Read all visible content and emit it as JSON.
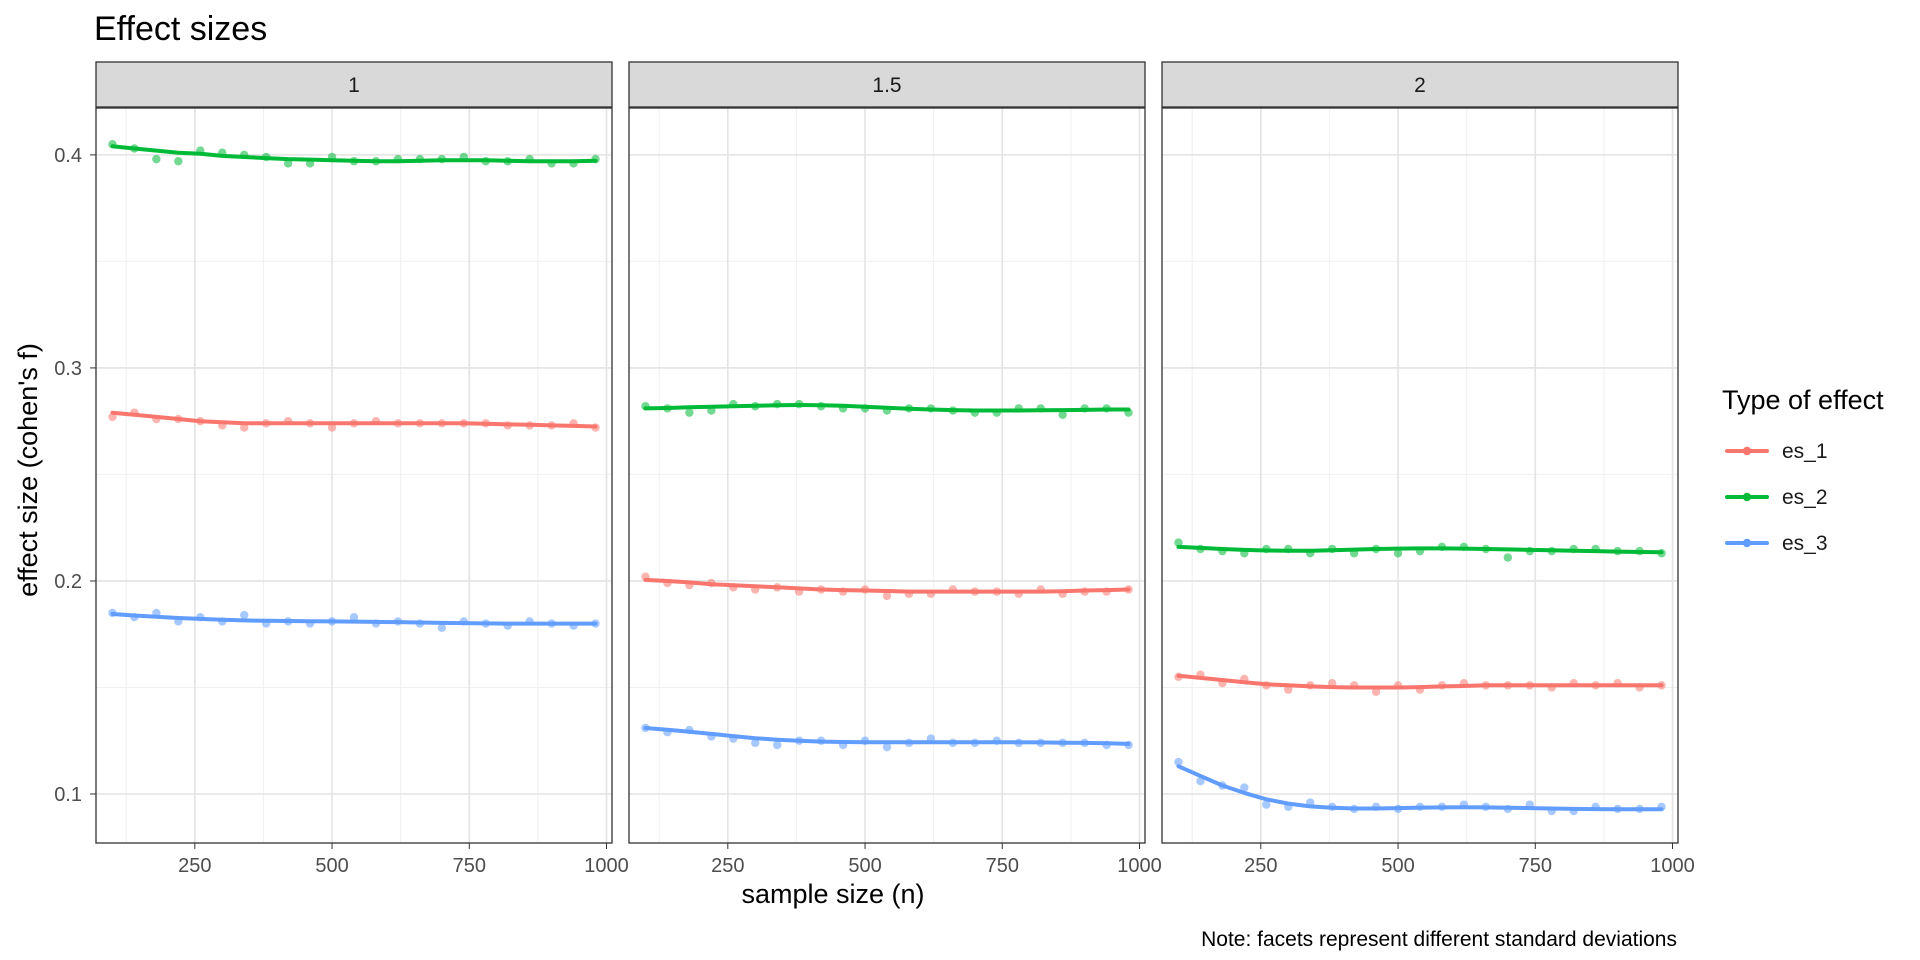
{
  "chart_data": {
    "type": "line",
    "title": "Effect sizes",
    "xlabel": "sample size (n)",
    "ylabel": "effect size (cohen's f)",
    "caption": "Note: facets represent different standard deviations",
    "legend": {
      "title": "Type of effect",
      "position": "right"
    },
    "xlim": [
      70,
      1010
    ],
    "ylim": [
      0.077,
      0.422
    ],
    "x_ticks": [
      250,
      500,
      750,
      1000
    ],
    "x_tick_labels": [
      "250",
      "500",
      "750",
      "1000"
    ],
    "y_ticks": [
      0.1,
      0.2,
      0.3,
      0.4
    ],
    "y_tick_labels": [
      "0.1",
      "0.2",
      "0.3",
      "0.4"
    ],
    "grid": true,
    "x": [
      100,
      140,
      180,
      220,
      260,
      300,
      340,
      380,
      420,
      460,
      500,
      540,
      580,
      620,
      660,
      700,
      740,
      780,
      820,
      860,
      900,
      940,
      980
    ],
    "series_colors": {
      "es_1": "#F8766D",
      "es_2": "#00BA38",
      "es_3": "#619CFF"
    },
    "facets": [
      {
        "label": "1",
        "series": [
          {
            "name": "es_1",
            "values": [
              0.277,
              0.279,
              0.276,
              0.276,
              0.275,
              0.273,
              0.272,
              0.274,
              0.275,
              0.274,
              0.272,
              0.274,
              0.275,
              0.274,
              0.274,
              0.274,
              0.274,
              0.274,
              0.273,
              0.273,
              0.273,
              0.274,
              0.272
            ],
            "smooth": [
              0.279,
              0.278,
              0.277,
              0.276,
              0.275,
              0.2745,
              0.274,
              0.274,
              0.274,
              0.274,
              0.274,
              0.274,
              0.274,
              0.274,
              0.274,
              0.274,
              0.274,
              0.2738,
              0.2735,
              0.2733,
              0.273,
              0.2728,
              0.2725
            ]
          },
          {
            "name": "es_2",
            "values": [
              0.405,
              0.403,
              0.398,
              0.397,
              0.402,
              0.401,
              0.4,
              0.399,
              0.396,
              0.396,
              0.399,
              0.397,
              0.397,
              0.398,
              0.398,
              0.398,
              0.399,
              0.397,
              0.397,
              0.398,
              0.396,
              0.396,
              0.398
            ],
            "smooth": [
              0.404,
              0.403,
              0.402,
              0.401,
              0.4005,
              0.3995,
              0.399,
              0.3985,
              0.398,
              0.3978,
              0.3975,
              0.3972,
              0.397,
              0.397,
              0.3972,
              0.3975,
              0.3975,
              0.3975,
              0.3972,
              0.397,
              0.397,
              0.397,
              0.3972
            ]
          },
          {
            "name": "es_3",
            "values": [
              0.185,
              0.183,
              0.185,
              0.181,
              0.183,
              0.181,
              0.184,
              0.18,
              0.181,
              0.18,
              0.181,
              0.183,
              0.18,
              0.181,
              0.18,
              0.178,
              0.181,
              0.18,
              0.179,
              0.181,
              0.18,
              0.179,
              0.18
            ],
            "smooth": [
              0.1845,
              0.1838,
              0.1832,
              0.1826,
              0.1822,
              0.1818,
              0.1815,
              0.1813,
              0.1812,
              0.1811,
              0.181,
              0.1809,
              0.1808,
              0.1807,
              0.1805,
              0.1803,
              0.1802,
              0.1801,
              0.18,
              0.18,
              0.18,
              0.18,
              0.18
            ]
          }
        ]
      },
      {
        "label": "1.5",
        "series": [
          {
            "name": "es_1",
            "values": [
              0.202,
              0.199,
              0.198,
              0.199,
              0.197,
              0.196,
              0.197,
              0.195,
              0.196,
              0.195,
              0.196,
              0.193,
              0.194,
              0.194,
              0.196,
              0.195,
              0.195,
              0.194,
              0.196,
              0.194,
              0.195,
              0.195,
              0.196
            ],
            "smooth": [
              0.2005,
              0.2,
              0.1993,
              0.1985,
              0.198,
              0.1975,
              0.197,
              0.1965,
              0.196,
              0.1957,
              0.1955,
              0.1953,
              0.195,
              0.195,
              0.195,
              0.195,
              0.195,
              0.195,
              0.195,
              0.1952,
              0.1955,
              0.1957,
              0.196
            ]
          },
          {
            "name": "es_2",
            "values": [
              0.282,
              0.281,
              0.279,
              0.28,
              0.283,
              0.282,
              0.283,
              0.283,
              0.282,
              0.281,
              0.281,
              0.28,
              0.281,
              0.281,
              0.28,
              0.279,
              0.279,
              0.281,
              0.281,
              0.278,
              0.281,
              0.281,
              0.279
            ],
            "smooth": [
              0.281,
              0.2812,
              0.2815,
              0.2818,
              0.282,
              0.2822,
              0.2825,
              0.2826,
              0.2825,
              0.2822,
              0.2818,
              0.2813,
              0.2808,
              0.2805,
              0.2802,
              0.28,
              0.28,
              0.28,
              0.2801,
              0.2802,
              0.2803,
              0.2805,
              0.2805
            ]
          },
          {
            "name": "es_3",
            "values": [
              0.131,
              0.129,
              0.13,
              0.127,
              0.126,
              0.124,
              0.123,
              0.125,
              0.125,
              0.123,
              0.125,
              0.122,
              0.124,
              0.126,
              0.124,
              0.124,
              0.125,
              0.124,
              0.124,
              0.124,
              0.124,
              0.123,
              0.123
            ],
            "smooth": [
              0.131,
              0.1302,
              0.1292,
              0.1282,
              0.1272,
              0.1262,
              0.1255,
              0.125,
              0.1246,
              0.1244,
              0.1243,
              0.1243,
              0.1243,
              0.1243,
              0.1243,
              0.1243,
              0.1243,
              0.1243,
              0.1242,
              0.1241,
              0.124,
              0.1238,
              0.1235
            ]
          }
        ]
      },
      {
        "label": "2",
        "series": [
          {
            "name": "es_1",
            "values": [
              0.155,
              0.156,
              0.152,
              0.154,
              0.151,
              0.149,
              0.151,
              0.152,
              0.151,
              0.148,
              0.151,
              0.149,
              0.151,
              0.152,
              0.151,
              0.151,
              0.151,
              0.15,
              0.152,
              0.151,
              0.152,
              0.15,
              0.151
            ],
            "smooth": [
              0.1555,
              0.1545,
              0.1535,
              0.1525,
              0.1515,
              0.151,
              0.1505,
              0.1502,
              0.15,
              0.15,
              0.15,
              0.1502,
              0.1505,
              0.1507,
              0.151,
              0.151,
              0.151,
              0.151,
              0.151,
              0.151,
              0.151,
              0.151,
              0.151
            ]
          },
          {
            "name": "es_2",
            "values": [
              0.218,
              0.215,
              0.214,
              0.213,
              0.215,
              0.215,
              0.213,
              0.215,
              0.213,
              0.215,
              0.213,
              0.214,
              0.216,
              0.216,
              0.215,
              0.211,
              0.214,
              0.214,
              0.215,
              0.215,
              0.214,
              0.214,
              0.213
            ],
            "smooth": [
              0.216,
              0.2155,
              0.215,
              0.2146,
              0.2143,
              0.2142,
              0.2142,
              0.2144,
              0.2147,
              0.215,
              0.2152,
              0.2153,
              0.2153,
              0.2152,
              0.215,
              0.2148,
              0.2146,
              0.2144,
              0.2142,
              0.214,
              0.2138,
              0.2136,
              0.2135
            ]
          },
          {
            "name": "es_3",
            "values": [
              0.115,
              0.106,
              0.104,
              0.103,
              0.095,
              0.094,
              0.096,
              0.094,
              0.093,
              0.094,
              0.093,
              0.094,
              0.094,
              0.095,
              0.094,
              0.093,
              0.095,
              0.092,
              0.092,
              0.094,
              0.093,
              0.093,
              0.094
            ],
            "smooth": [
              0.113,
              0.1085,
              0.104,
              0.1005,
              0.0975,
              0.0955,
              0.0942,
              0.0935,
              0.0932,
              0.0932,
              0.0934,
              0.0936,
              0.0937,
              0.0938,
              0.0937,
              0.0935,
              0.0934,
              0.0932,
              0.093,
              0.0929,
              0.0928,
              0.0928,
              0.0928
            ]
          }
        ]
      }
    ]
  }
}
